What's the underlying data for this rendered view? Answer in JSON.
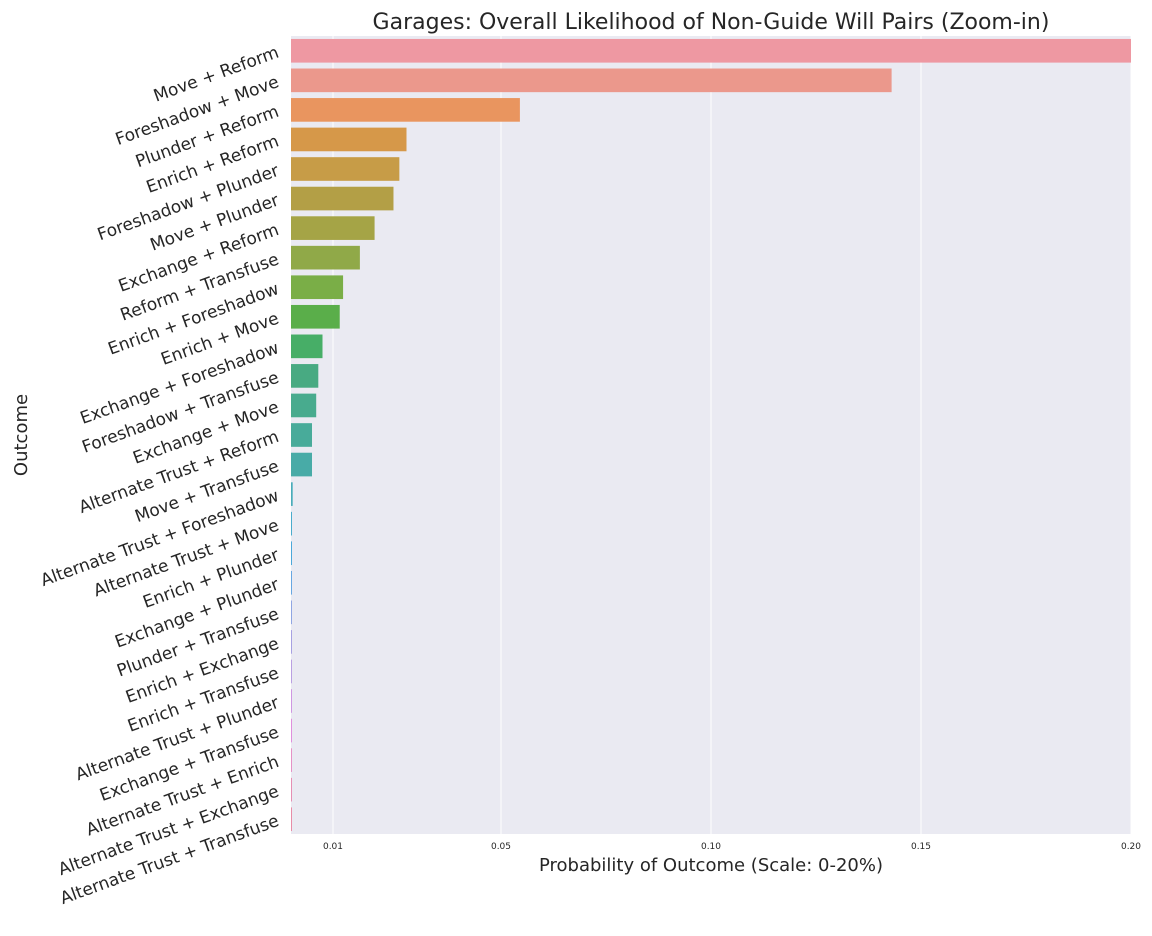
{
  "chart_data": {
    "type": "bar",
    "orientation": "horizontal",
    "title": "Garages: Overall Likelihood of Non-Guide Will Pairs (Zoom-in)",
    "xlabel": "Probability of Outcome (Scale: 0-20%)",
    "ylabel": "Outcome",
    "xlim": [
      0,
      0.2
    ],
    "grid": true,
    "xticks": [
      {
        "value": 0.01,
        "label": "0.01"
      },
      {
        "value": 0.05,
        "label": "0.05"
      },
      {
        "value": 0.1,
        "label": "0.10"
      },
      {
        "value": 0.15,
        "label": "0.15"
      },
      {
        "value": 0.2,
        "label": "0.20"
      }
    ],
    "categories": [
      "Move + Reform",
      "Foreshadow + Move",
      "Plunder + Reform",
      "Enrich + Reform",
      "Foreshadow + Plunder",
      "Move + Plunder",
      "Exchange + Reform",
      "Reform + Transfuse",
      "Enrich + Foreshadow",
      "Enrich + Move",
      "Exchange + Foreshadow",
      "Foreshadow + Transfuse",
      "Exchange + Move",
      "Alternate Trust + Reform",
      "Move + Transfuse",
      "Alternate Trust + Foreshadow",
      "Alternate Trust + Move",
      "Enrich + Plunder",
      "Exchange + Plunder",
      "Plunder + Transfuse",
      "Enrich + Exchange",
      "Enrich + Transfuse",
      "Alternate Trust + Plunder",
      "Exchange + Transfuse",
      "Alternate Trust + Enrich",
      "Alternate Trust + Exchange",
      "Alternate Trust + Transfuse"
    ],
    "values": [
      0.2,
      0.143,
      0.0545,
      0.0275,
      0.0258,
      0.0244,
      0.0199,
      0.0164,
      0.0124,
      0.0116,
      0.0075,
      0.0065,
      0.006,
      0.005,
      0.005,
      0.0004,
      -0.0002,
      -0.0022,
      -0.0031,
      -0.0036,
      -0.004,
      -0.0042,
      -0.0044,
      -0.0045,
      -0.0047,
      -0.0048,
      -0.005
    ],
    "colors": [
      "#ee98a2",
      "#eb988c",
      "#e9955f",
      "#d69849",
      "#c79c47",
      "#b39f46",
      "#a5a446",
      "#90a948",
      "#7aae47",
      "#5aae4a",
      "#47ae67",
      "#48aa82",
      "#48ab8e",
      "#48ab9a",
      "#48aba7",
      "#4aacba",
      "#4baccd",
      "#4ca8da",
      "#68a7e2",
      "#90a6e3",
      "#a7a1e2",
      "#baa0e2",
      "#cf97e2",
      "#e090dd",
      "#e692c6",
      "#e68fb4",
      "#e88da8"
    ]
  }
}
